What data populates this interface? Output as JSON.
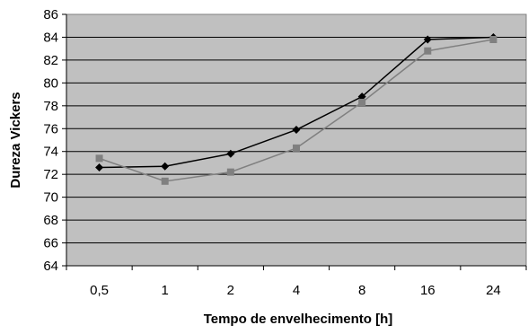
{
  "chart_data": {
    "type": "line",
    "title": "",
    "xlabel": "Tempo de envelhecimento [h]",
    "ylabel": "Dureza Vickers",
    "categories": [
      "0,5",
      "1",
      "2",
      "4",
      "8",
      "16",
      "24"
    ],
    "ylim": [
      64,
      86
    ],
    "ytick_step": 2,
    "yticks": [
      "64",
      "66",
      "68",
      "70",
      "72",
      "74",
      "76",
      "78",
      "80",
      "82",
      "84",
      "86"
    ],
    "grid": "horizontal",
    "legend": "none",
    "plot_background": "#c0c0c0",
    "series": [
      {
        "marker": "diamond",
        "color": "#000000",
        "values": [
          72.6,
          72.7,
          73.8,
          75.9,
          78.8,
          83.8,
          84.0
        ]
      },
      {
        "marker": "square",
        "color": "#808080",
        "values": [
          73.4,
          71.4,
          72.2,
          74.3,
          78.3,
          82.8,
          83.8
        ]
      }
    ]
  }
}
